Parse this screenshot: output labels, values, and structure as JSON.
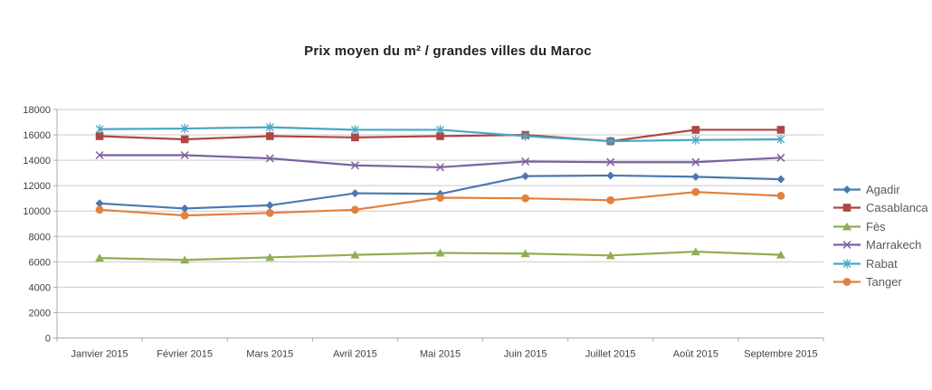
{
  "title": "Prix moyen du m² / grandes villes du Maroc",
  "chart_data": {
    "type": "line",
    "categories": [
      "Janvier 2015",
      "Février 2015",
      "Mars 2015",
      "Avril 2015",
      "Mai 2015",
      "Juin 2015",
      "Juillet 2015",
      "Août 2015",
      "Septembre 2015"
    ],
    "series": [
      {
        "name": "Agadir",
        "marker": "diamond",
        "color": "#4A79B0",
        "values": [
          10600,
          10200,
          10450,
          11400,
          11350,
          12750,
          12800,
          12700,
          12500
        ]
      },
      {
        "name": "Casablanca",
        "marker": "square",
        "color": "#AF4641",
        "values": [
          15900,
          15650,
          15900,
          15800,
          15900,
          16000,
          15500,
          16400,
          16400
        ]
      },
      {
        "name": "Fès",
        "marker": "triangle",
        "color": "#90AE50",
        "values": [
          6300,
          6150,
          6350,
          6550,
          6700,
          6650,
          6500,
          6800,
          6550
        ]
      },
      {
        "name": "Marrakech",
        "marker": "x",
        "color": "#7C62A2",
        "values": [
          14400,
          14400,
          14150,
          13600,
          13450,
          13900,
          13850,
          13850,
          14200
        ]
      },
      {
        "name": "Rabat",
        "marker": "asterisk",
        "color": "#48A6C6",
        "values": [
          16450,
          16500,
          16600,
          16400,
          16400,
          15900,
          15500,
          15600,
          15650
        ]
      },
      {
        "name": "Tanger",
        "marker": "circle",
        "color": "#E0823E",
        "values": [
          10100,
          9650,
          9850,
          10100,
          11050,
          11000,
          10850,
          11500,
          11200
        ]
      }
    ],
    "ylim": [
      0,
      18000
    ],
    "yticks": [
      0,
      2000,
      4000,
      6000,
      8000,
      10000,
      12000,
      14000,
      16000,
      18000
    ],
    "grid": true,
    "legend_position": "right",
    "xlabel": "",
    "ylabel": ""
  },
  "style": {
    "grid_color": "#C9C9C9",
    "axis_color": "#ABABAB",
    "axis_text_color": "#404040",
    "legend_text_color": "#595959",
    "background": "#FFFFFF"
  }
}
